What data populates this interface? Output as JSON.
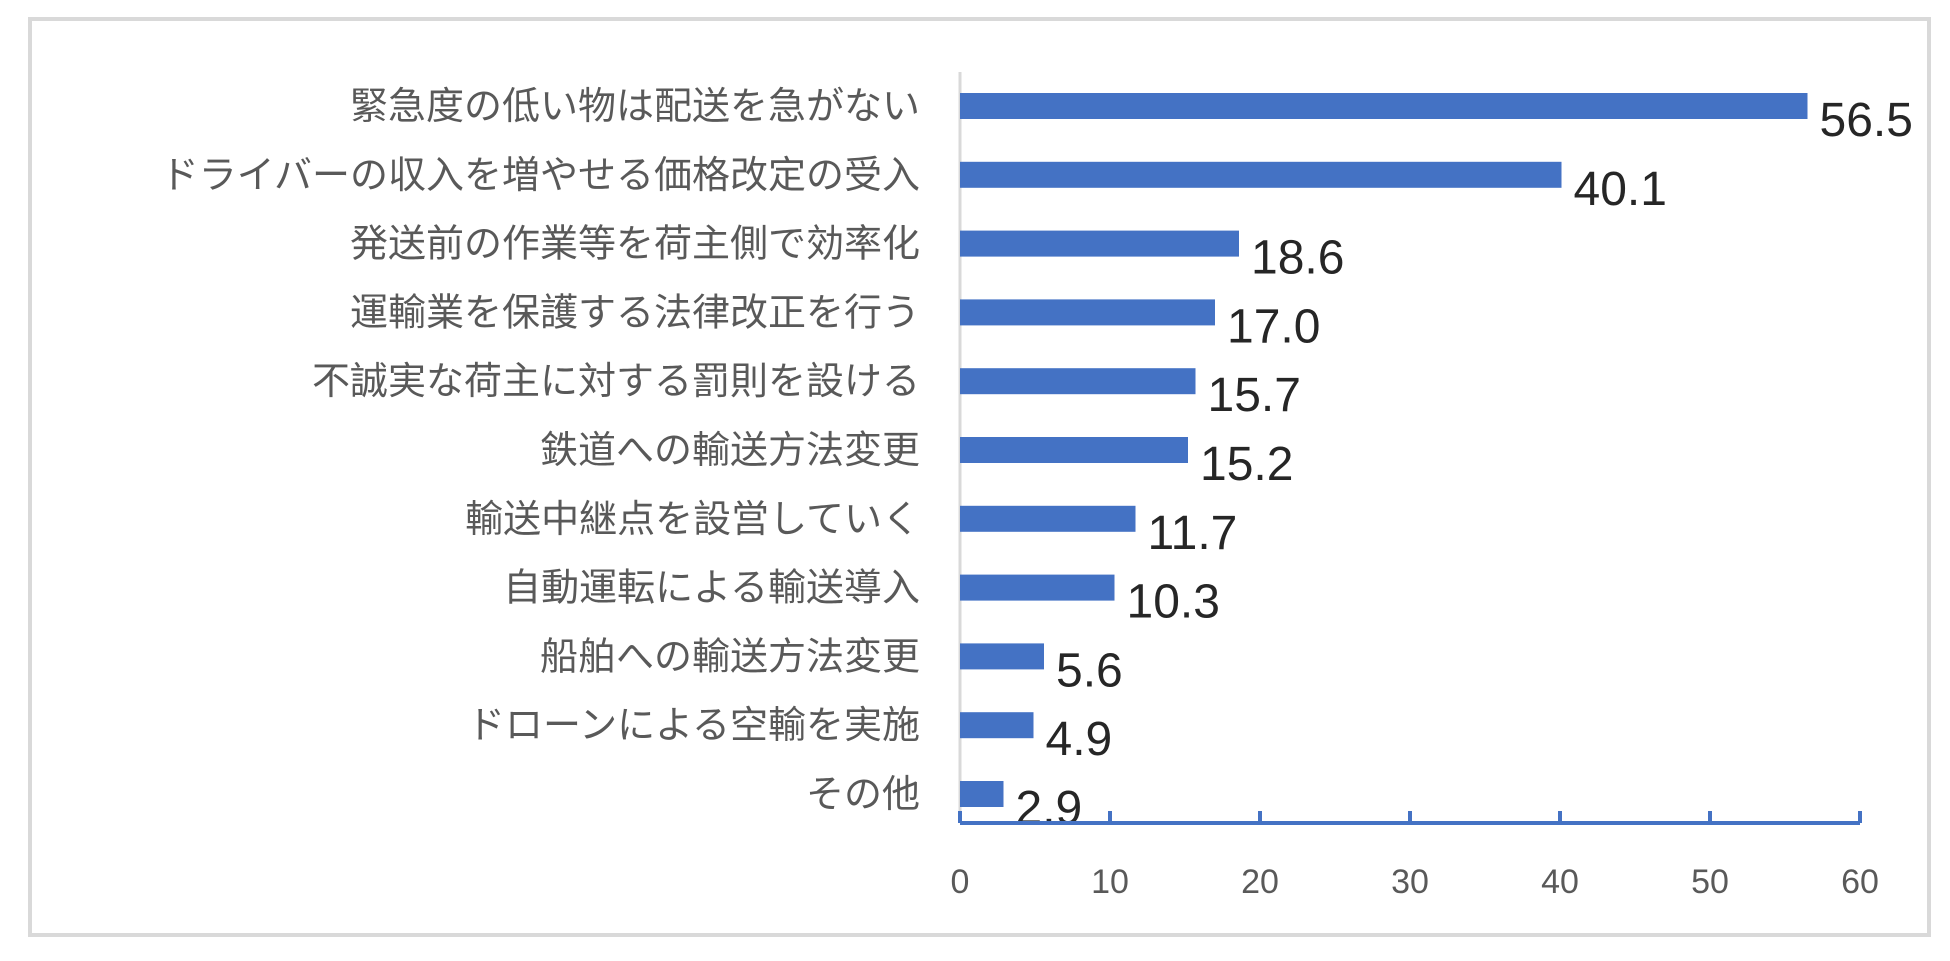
{
  "chart_data": {
    "type": "bar",
    "orientation": "horizontal",
    "categories": [
      "緊急度の低い物は配送を急がない",
      "ドライバーの収入を増やせる価格改定の受入",
      "発送前の作業等を荷主側で効率化",
      "運輸業を保護する法律改正を行う",
      "不誠実な荷主に対する罰則を設ける",
      "鉄道への輸送方法変更",
      "輸送中継点を設営していく",
      "自動運転による輸送導入",
      "船舶への輸送方法変更",
      "ドローンによる空輸を実施",
      "その他"
    ],
    "values": [
      56.5,
      40.1,
      18.6,
      17.0,
      15.7,
      15.2,
      11.7,
      10.3,
      5.6,
      4.9,
      2.9
    ],
    "value_labels": [
      "56.5",
      "40.1",
      "18.6",
      "17.0",
      "15.7",
      "15.2",
      "11.7",
      "10.3",
      "5.6",
      "4.9",
      "2.9"
    ],
    "xlim": [
      0,
      60
    ],
    "xticks": [
      0,
      10,
      20,
      30,
      40,
      50,
      60
    ],
    "xtick_labels": [
      "0",
      "10",
      "20",
      "30",
      "40",
      "50",
      "60"
    ],
    "title": "",
    "xlabel": "",
    "ylabel": "",
    "grid": false,
    "legend": "none",
    "bar_color": "#4472c4",
    "axis_color": "#4472c4"
  }
}
